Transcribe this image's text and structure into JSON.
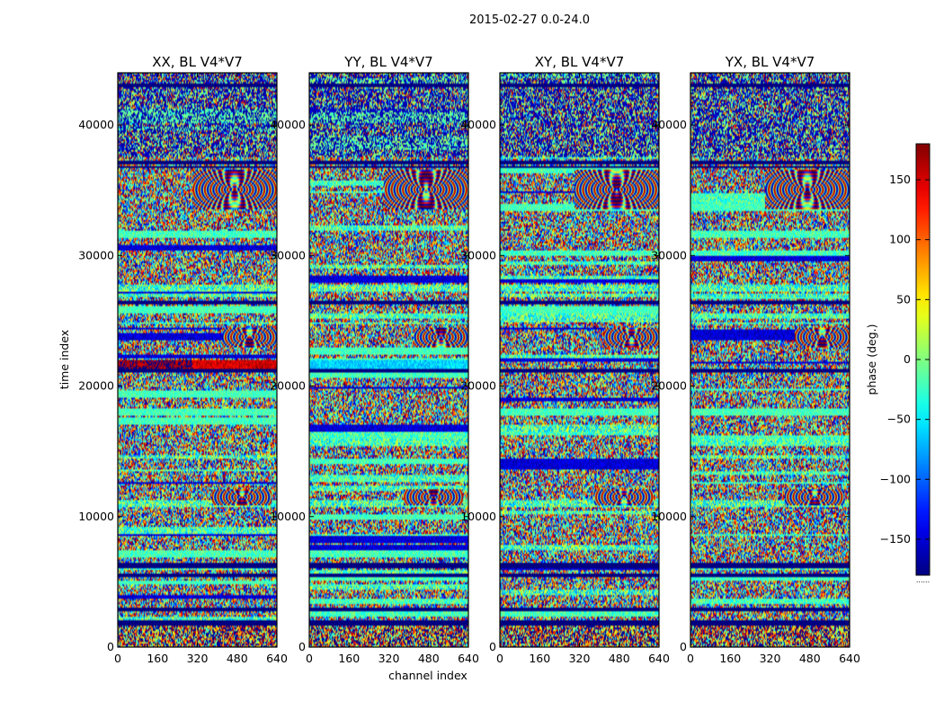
{
  "chart_data": {
    "type": "heatmap",
    "title": "2015-02-27 0.0-24.0",
    "xlabel": "channel index",
    "ylabel": "time index",
    "xlim": [
      0,
      640
    ],
    "ylim": [
      0,
      44000
    ],
    "x_ticks": [
      0,
      160,
      320,
      480,
      640
    ],
    "y_ticks": [
      0,
      10000,
      20000,
      30000,
      40000
    ],
    "x_tick_labels": [
      "0",
      "160",
      "320",
      "480",
      "640"
    ],
    "y_tick_labels": [
      "0",
      "10000",
      "20000",
      "30000",
      "40000"
    ],
    "colormap": "jet",
    "colorbar": {
      "label": "phase (deg.)",
      "range": [
        -180,
        180
      ],
      "ticks": [
        -150,
        -100,
        -50,
        0,
        50,
        100,
        150
      ],
      "tick_labels": [
        "−150",
        "−100",
        "−50",
        "0",
        "50",
        "100",
        "150"
      ],
      "below_label": "......"
    },
    "panels": [
      {
        "title": "XX, BL V4*V7",
        "polarization": "XX",
        "baseline": "V4*V7"
      },
      {
        "title": "YY, BL V4*V7",
        "polarization": "YY",
        "baseline": "V4*V7"
      },
      {
        "title": "XY, BL V4*V7",
        "polarization": "XY",
        "baseline": "V4*V7"
      },
      {
        "title": "YX, BL V4*V7",
        "polarization": "YX",
        "baseline": "V4*V7"
      }
    ],
    "flagged_bands": [
      {
        "t0": 42900,
        "t1": 43200,
        "value": -180
      },
      {
        "t0": 37000,
        "t1": 37200,
        "value": -180
      },
      {
        "t0": 36700,
        "t1": 36850,
        "value": -180
      },
      {
        "t0": 26300,
        "t1": 26550,
        "value": -180
      },
      {
        "t0": 21000,
        "t1": 21250,
        "value": -180
      },
      {
        "t0": 6000,
        "t1": 6400,
        "value": -180
      },
      {
        "t0": 5400,
        "t1": 5700,
        "value": -180
      },
      {
        "t0": 2700,
        "t1": 3000,
        "value": -180
      },
      {
        "t0": 1700,
        "t1": 2000,
        "value": -180
      }
    ],
    "bright_bands": [
      {
        "panel": 0,
        "t0": 21300,
        "t1": 22000,
        "value": 150
      },
      {
        "panel": 1,
        "t0": 21300,
        "t1": 22000,
        "value": -60
      }
    ],
    "fringe_regions": [
      {
        "t0": 33500,
        "t1": 36600,
        "ch0": 300,
        "ch1": 640
      },
      {
        "t0": 10900,
        "t1": 12100,
        "ch0": 380,
        "ch1": 620
      },
      {
        "t0": 23000,
        "t1": 24500,
        "ch0": 420,
        "ch1": 640
      }
    ]
  }
}
